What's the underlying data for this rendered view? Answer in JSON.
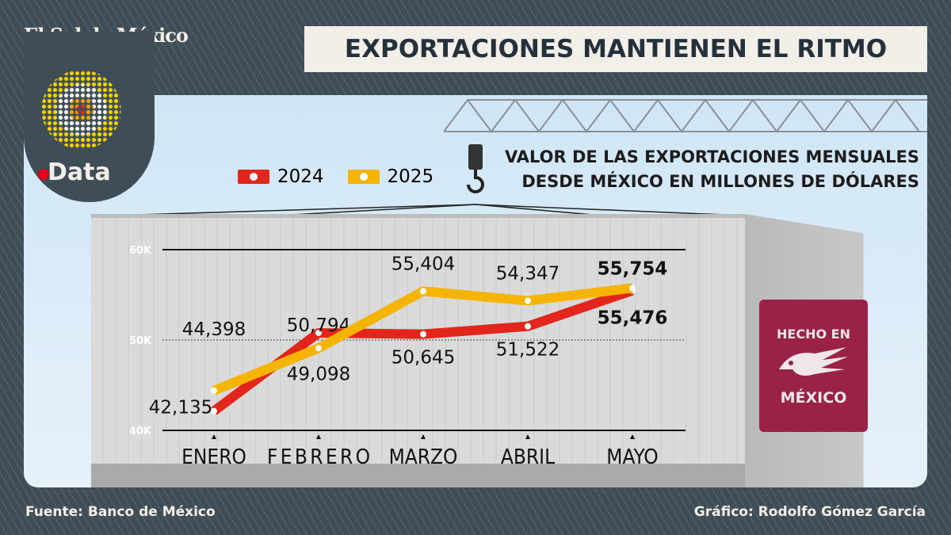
{
  "brand": "El Sol de México",
  "data_logo": "Data",
  "title": "EXPORTACIONES MANTIENEN EL RITMO",
  "subtitle_line1": "VALOR DE LAS EXPORTACIONES MENSUALES",
  "subtitle_line2": "DESDE MÉXICO EN  MILLONES DE DÓLARES",
  "stamp": {
    "line1": "HECHO EN",
    "line2": "MÉXICO"
  },
  "source": "Fuente: Banco de México",
  "credit": "Gráfico: Rodolfo Gómez García",
  "colors": {
    "2024": "#e3261b",
    "2025": "#f5b400",
    "background": "#3f4d57",
    "stamp": "#9b2247"
  },
  "chart_data": {
    "type": "line",
    "categories": [
      "ENERO",
      "FEBRERO",
      "MARZO",
      "ABRIL",
      "MAYO"
    ],
    "series": [
      {
        "name": "2024",
        "values": [
          42135,
          50794,
          50645,
          51522,
          55476
        ],
        "labels": [
          "42,135",
          "50,794",
          "50,645",
          "51,522",
          "55,476"
        ]
      },
      {
        "name": "2025",
        "values": [
          44398,
          49098,
          55404,
          54347,
          55754
        ],
        "labels": [
          "44,398",
          "49,098",
          "55,404",
          "54,347",
          "55,754"
        ]
      }
    ],
    "yticks": [
      "40K",
      "50K",
      "60K"
    ],
    "ylim": [
      40000,
      60000
    ],
    "legend": "top-left",
    "grid": true
  }
}
